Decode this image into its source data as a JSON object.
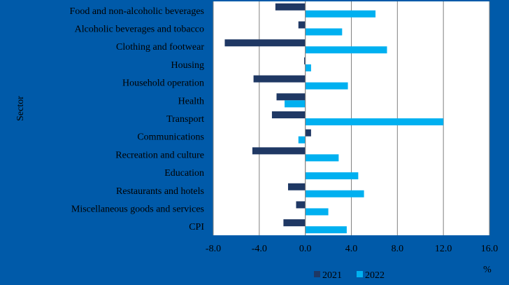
{
  "chart_data": {
    "type": "bar",
    "orientation": "horizontal",
    "ylabel": "Sector",
    "xlabel": "%",
    "xlim": [
      -8,
      16
    ],
    "xticks": [
      "-8.0",
      "-4.0",
      "0.0",
      "4.0",
      "8.0",
      "12.0",
      "16.0"
    ],
    "grid": true,
    "legend_position": "bottom",
    "categories": [
      "Food and non-alcoholic beverages",
      "Alcoholic beverages and tobacco",
      "Clothing and footwear",
      "Housing",
      "Household operation",
      "Health",
      "Transport",
      "Communications",
      "Recreation and culture",
      "Education",
      "Restaurants and hotels",
      "Miscellaneous goods and services",
      "CPI"
    ],
    "series": [
      {
        "name": "2021",
        "color": "#1f3864",
        "values": [
          -2.6,
          -0.6,
          -7.0,
          -0.1,
          -4.5,
          -2.5,
          -2.9,
          0.5,
          -4.6,
          0.0,
          -1.5,
          -0.8,
          -1.9
        ]
      },
      {
        "name": "2022",
        "color": "#00b0f0",
        "values": [
          6.1,
          3.2,
          7.1,
          0.5,
          3.7,
          -1.8,
          12.0,
          -0.6,
          2.9,
          4.6,
          5.1,
          2.0,
          3.6
        ]
      }
    ]
  },
  "colors": {
    "background": "#005aa9",
    "plot_background": "#ffffff",
    "grid": "#808080",
    "text": "#000000"
  }
}
